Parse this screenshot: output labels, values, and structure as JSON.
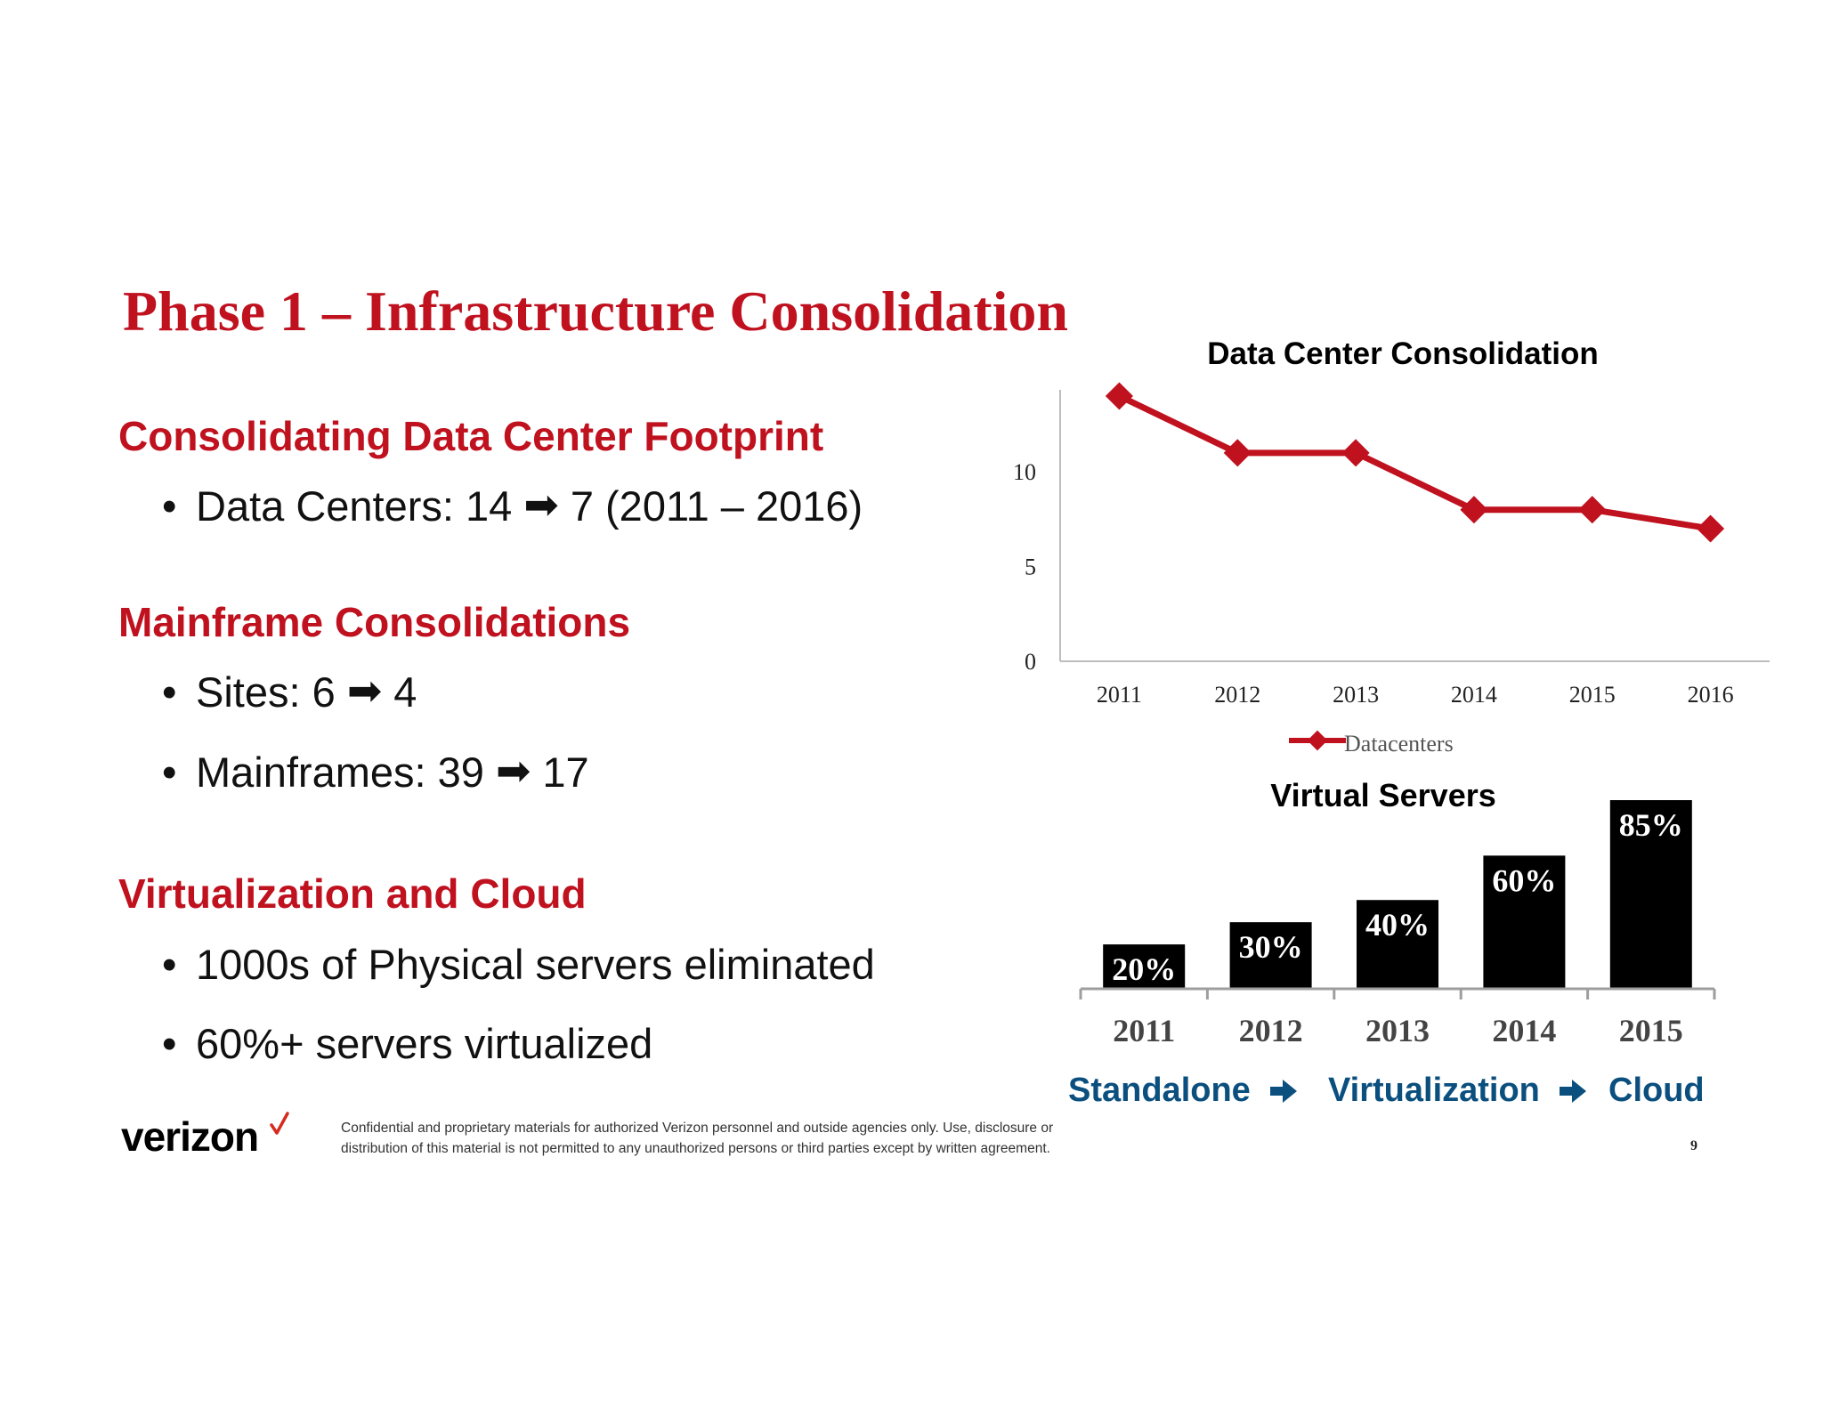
{
  "slide": {
    "title": "Phase 1 – Infrastructure Consolidation",
    "page_number": "9"
  },
  "sections": [
    {
      "heading": "Consolidating Data Center Footprint",
      "bullets": [
        {
          "bullet": "•",
          "before": "Data Centers: 14",
          "arrow": "➡",
          "after": "7 (2011 – 2016)"
        }
      ]
    },
    {
      "heading": "Mainframe Consolidations",
      "bullets": [
        {
          "bullet": "•",
          "before": "Sites: 6",
          "arrow": "➡",
          "after": "4"
        },
        {
          "bullet": "•",
          "before": "Mainframes: 39",
          "arrow": "➡",
          "after": "17"
        }
      ]
    },
    {
      "heading": "Virtualization and Cloud",
      "bullets": [
        {
          "bullet": "•",
          "text": "1000s of Physical servers eliminated"
        },
        {
          "bullet": "•",
          "text": "60%+ servers virtualized"
        }
      ]
    }
  ],
  "footer": {
    "logo_text": "verizon",
    "logo_check_color": "#d52b1e",
    "disclaimer": "Confidential and proprietary materials for authorized Verizon personnel and outside agencies only. Use, disclosure or distribution of this material is not permitted to any unauthorized persons or third parties except by written agreement."
  },
  "flow": {
    "steps": [
      "Standalone",
      "Virtualization",
      "Cloud"
    ],
    "color": "#0b4f7f",
    "arrow_icon": "right-arrow-icon"
  },
  "colors": {
    "accent_red": "#c0111f",
    "bar_fill": "#000000"
  },
  "chart_data": [
    {
      "type": "line",
      "title": "Data Center Consolidation",
      "x": [
        "2011",
        "2012",
        "2013",
        "2014",
        "2015",
        "2016"
      ],
      "series": [
        {
          "name": "Datacenters",
          "values": [
            14,
            11,
            11,
            8,
            8,
            7
          ],
          "color": "#c0111f",
          "marker": "diamond"
        }
      ],
      "yticks": [
        0,
        5,
        10
      ],
      "ylim": [
        0,
        14
      ],
      "grid": false,
      "legend": "bottom"
    },
    {
      "type": "bar",
      "title": "Virtual Servers",
      "categories": [
        "2011",
        "2012",
        "2013",
        "2014",
        "2015"
      ],
      "values": [
        20,
        30,
        40,
        60,
        85
      ],
      "data_labels": [
        "20%",
        "30%",
        "40%",
        "60%",
        "85%"
      ],
      "unit": "%",
      "color": "#000000",
      "ylim": [
        0,
        85
      ],
      "grid": false
    }
  ]
}
